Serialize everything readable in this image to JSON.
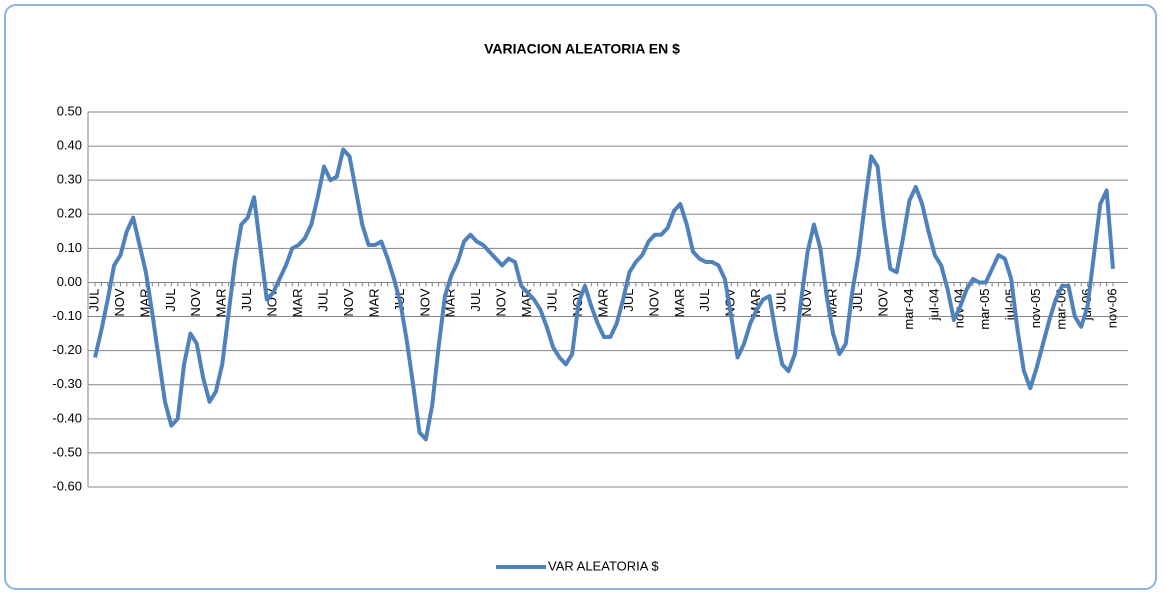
{
  "chart_data": {
    "type": "line",
    "title": "VARIACION ALEATORIA EN $",
    "categories": [
      "JUL",
      null,
      null,
      null,
      "NOV",
      null,
      null,
      null,
      "MAR",
      null,
      null,
      null,
      "JUL",
      null,
      null,
      null,
      "NOV",
      null,
      null,
      null,
      "MAR",
      null,
      null,
      null,
      "JUL",
      null,
      null,
      null,
      "NOV",
      null,
      null,
      null,
      "MAR",
      null,
      null,
      null,
      "JUL",
      null,
      null,
      null,
      "NOV",
      null,
      null,
      null,
      "MAR",
      null,
      null,
      null,
      "JUL",
      null,
      null,
      null,
      "NOV",
      null,
      null,
      null,
      "MAR",
      null,
      null,
      null,
      "JUL",
      null,
      null,
      null,
      "NOV",
      null,
      null,
      null,
      "MAR",
      null,
      null,
      null,
      "JUL",
      null,
      null,
      null,
      "NOV",
      null,
      null,
      null,
      "MAR",
      null,
      null,
      null,
      "JUL",
      null,
      null,
      null,
      "NOV",
      null,
      null,
      null,
      "MAR",
      null,
      null,
      null,
      "JUL",
      null,
      null,
      null,
      "NOV",
      null,
      null,
      null,
      "MAR",
      null,
      null,
      null,
      "JUL",
      null,
      null,
      null,
      "NOV",
      null,
      null,
      null,
      "MAR",
      null,
      null,
      null,
      "JUL",
      null,
      null,
      null,
      "NOV",
      null,
      null,
      null,
      "mar-04",
      null,
      null,
      null,
      "jul-04",
      null,
      null,
      null,
      "nov-04",
      null,
      null,
      null,
      "mar-05",
      null,
      null,
      null,
      "jul-05",
      null,
      null,
      null,
      "nov-05",
      null,
      null,
      null,
      "mar-06",
      null,
      null,
      null,
      "jul-06",
      null,
      null,
      null,
      "nov-06"
    ],
    "series": [
      {
        "name": "VAR ALEATORIA $",
        "color": "#4f81bd",
        "values": [
          -0.22,
          -0.14,
          -0.05,
          0.05,
          0.08,
          0.15,
          0.19,
          0.11,
          0.03,
          -0.09,
          -0.22,
          -0.35,
          -0.42,
          -0.4,
          -0.24,
          -0.15,
          -0.18,
          -0.28,
          -0.35,
          -0.32,
          -0.24,
          -0.09,
          0.06,
          0.17,
          0.19,
          0.25,
          0.1,
          -0.05,
          -0.03,
          0.01,
          0.05,
          0.1,
          0.11,
          0.13,
          0.17,
          0.25,
          0.34,
          0.3,
          0.31,
          0.39,
          0.37,
          0.27,
          0.17,
          0.11,
          0.11,
          0.12,
          0.07,
          0.01,
          -0.06,
          -0.17,
          -0.3,
          -0.44,
          -0.46,
          -0.36,
          -0.19,
          -0.04,
          0.02,
          0.06,
          0.12,
          0.14,
          0.12,
          0.11,
          0.09,
          0.07,
          0.05,
          0.07,
          0.06,
          -0.01,
          -0.03,
          -0.05,
          -0.08,
          -0.13,
          -0.19,
          -0.22,
          -0.24,
          -0.21,
          -0.06,
          -0.01,
          -0.07,
          -0.12,
          -0.16,
          -0.16,
          -0.12,
          -0.05,
          0.03,
          0.06,
          0.08,
          0.12,
          0.14,
          0.14,
          0.16,
          0.21,
          0.23,
          0.17,
          0.09,
          0.07,
          0.06,
          0.06,
          0.05,
          0.01,
          -0.1,
          -0.22,
          -0.18,
          -0.12,
          -0.08,
          -0.05,
          -0.04,
          -0.15,
          -0.24,
          -0.26,
          -0.21,
          -0.05,
          0.09,
          0.17,
          0.1,
          -0.04,
          -0.15,
          -0.21,
          -0.18,
          -0.03,
          0.08,
          0.23,
          0.37,
          0.34,
          0.17,
          0.04,
          0.03,
          0.13,
          0.24,
          0.28,
          0.23,
          0.15,
          0.08,
          0.05,
          -0.02,
          -0.11,
          -0.07,
          -0.02,
          0.01,
          0.0,
          0.0,
          0.04,
          0.08,
          0.07,
          0.01,
          -0.14,
          -0.26,
          -0.31,
          -0.25,
          -0.18,
          -0.11,
          -0.05,
          -0.01,
          -0.01,
          -0.1,
          -0.13,
          -0.07,
          0.08,
          0.23,
          0.27,
          0.04
        ]
      }
    ],
    "ylim": [
      -0.6,
      0.5
    ],
    "yticks": [
      {
        "value": 0.5,
        "label": "0.50"
      },
      {
        "value": 0.4,
        "label": "0.40"
      },
      {
        "value": 0.3,
        "label": "0.30"
      },
      {
        "value": 0.2,
        "label": "0.20"
      },
      {
        "value": 0.1,
        "label": "0.10"
      },
      {
        "value": 0,
        "label": "0.00"
      },
      {
        "value": -0.1,
        "label": "-0.10"
      },
      {
        "value": -0.2,
        "label": "-0.20"
      },
      {
        "value": -0.3,
        "label": "-0.30"
      },
      {
        "value": -0.4,
        "label": "-0.40"
      },
      {
        "value": -0.5,
        "label": "-0.50"
      },
      {
        "value": -0.6,
        "label": "-0.60"
      }
    ],
    "grid": true,
    "legend": "bottom"
  }
}
